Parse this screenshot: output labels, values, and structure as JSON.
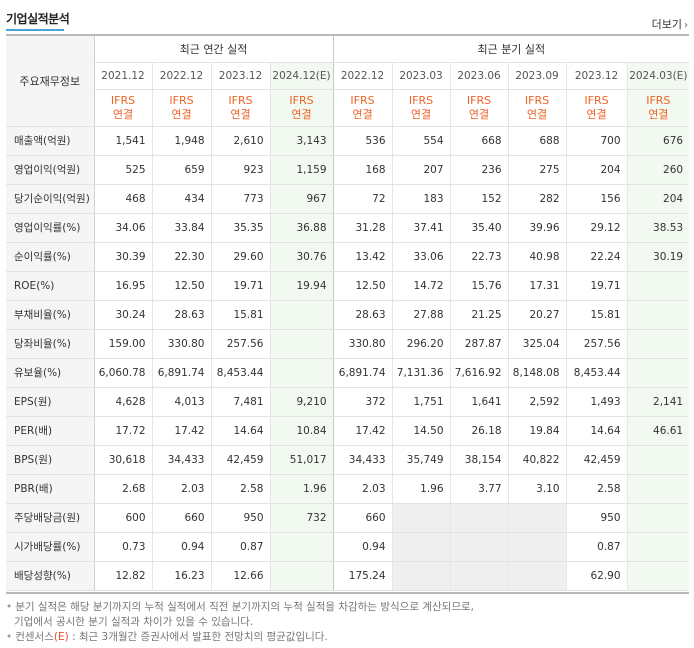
{
  "header": {
    "title": "기업실적분석",
    "more_label": "더보기",
    "more_arrow": "›"
  },
  "table": {
    "row_header_label": "주요재무정보",
    "group_annual": "최근 연간 실적",
    "group_quarter": "최근 분기 실적",
    "periods": [
      "2021.12",
      "2022.12",
      "2023.12",
      "2024.12(E)",
      "2022.12",
      "2023.03",
      "2023.06",
      "2023.09",
      "2023.12",
      "2024.03(E)"
    ],
    "ifrs_line1": "IFRS",
    "ifrs_line2": "연결",
    "rows": [
      {
        "label": "매출액(억원)",
        "values": [
          "1,541",
          "1,948",
          "2,610",
          "3,143",
          "536",
          "554",
          "668",
          "688",
          "700",
          "676"
        ]
      },
      {
        "label": "영업이익(억원)",
        "values": [
          "525",
          "659",
          "923",
          "1,159",
          "168",
          "207",
          "236",
          "275",
          "204",
          "260"
        ]
      },
      {
        "label": "당기순이익(억원)",
        "values": [
          "468",
          "434",
          "773",
          "967",
          "72",
          "183",
          "152",
          "282",
          "156",
          "204"
        ]
      },
      {
        "label": "영업이익률(%)",
        "values": [
          "34.06",
          "33.84",
          "35.35",
          "36.88",
          "31.28",
          "37.41",
          "35.40",
          "39.96",
          "29.12",
          "38.53"
        ]
      },
      {
        "label": "순이익률(%)",
        "values": [
          "30.39",
          "22.30",
          "29.60",
          "30.76",
          "13.42",
          "33.06",
          "22.73",
          "40.98",
          "22.24",
          "30.19"
        ]
      },
      {
        "label": "ROE(%)",
        "values": [
          "16.95",
          "12.50",
          "19.71",
          "19.94",
          "12.50",
          "14.72",
          "15.76",
          "17.31",
          "19.71",
          ""
        ]
      },
      {
        "label": "부채비율(%)",
        "values": [
          "30.24",
          "28.63",
          "15.81",
          "",
          "28.63",
          "27.88",
          "21.25",
          "20.27",
          "15.81",
          ""
        ]
      },
      {
        "label": "당좌비율(%)",
        "values": [
          "159.00",
          "330.80",
          "257.56",
          "",
          "330.80",
          "296.20",
          "287.87",
          "325.04",
          "257.56",
          ""
        ]
      },
      {
        "label": "유보율(%)",
        "values": [
          "6,060.78",
          "6,891.74",
          "8,453.44",
          "",
          "6,891.74",
          "7,131.36",
          "7,616.92",
          "8,148.08",
          "8,453.44",
          ""
        ]
      },
      {
        "label": "EPS(원)",
        "values": [
          "4,628",
          "4,013",
          "7,481",
          "9,210",
          "372",
          "1,751",
          "1,641",
          "2,592",
          "1,493",
          "2,141"
        ]
      },
      {
        "label": "PER(배)",
        "values": [
          "17.72",
          "17.42",
          "14.64",
          "10.84",
          "17.42",
          "14.50",
          "26.18",
          "19.84",
          "14.64",
          "46.61"
        ]
      },
      {
        "label": "BPS(원)",
        "values": [
          "30,618",
          "34,433",
          "42,459",
          "51,017",
          "34,433",
          "35,749",
          "38,154",
          "40,822",
          "42,459",
          ""
        ]
      },
      {
        "label": "PBR(배)",
        "values": [
          "2.68",
          "2.03",
          "2.58",
          "1.96",
          "2.03",
          "1.96",
          "3.77",
          "3.10",
          "2.58",
          ""
        ]
      },
      {
        "label": "주당배당금(원)",
        "values": [
          "600",
          "660",
          "950",
          "732",
          "660",
          "",
          "",
          "",
          "950",
          ""
        ]
      },
      {
        "label": "시가배당률(%)",
        "values": [
          "0.73",
          "0.94",
          "0.87",
          "",
          "0.94",
          "",
          "",
          "",
          "0.87",
          ""
        ]
      },
      {
        "label": "배당성향(%)",
        "values": [
          "12.82",
          "16.23",
          "12.66",
          "",
          "175.24",
          "",
          "",
          "",
          "62.90",
          ""
        ]
      }
    ]
  },
  "notes": {
    "line1": "분기 실적은 해당 분기까지의 누적 실적에서 직전 분기까지의 누적 실적을 차감하는 방식으로 계산되므로,",
    "line2": "기업에서 공시한 분기 실적과 차이가 있을 수 있습니다.",
    "line3_prefix": "컨센서스",
    "line3_e": "(E)",
    "line3_rest": " : 최근 3개월간 증권사에서 발표한 전망치의 평균값입니다.",
    "bullet": "•"
  },
  "colors": {
    "accent_orange": "#f06226",
    "estimate_bg": "#f2f9f0",
    "title_underline": "#4aa3d6"
  }
}
